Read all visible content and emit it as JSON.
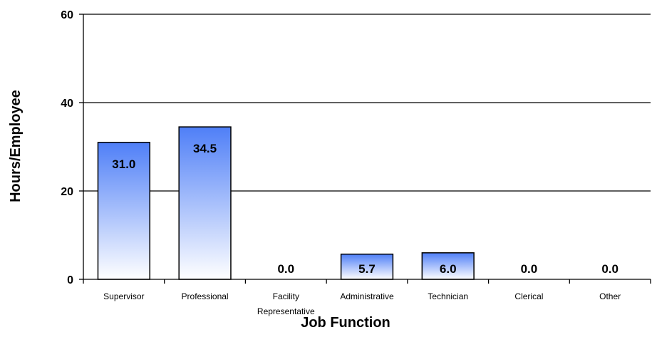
{
  "chart_data": {
    "type": "bar",
    "title": "",
    "xlabel": "Job Function",
    "ylabel": "Hours/Employee",
    "categories": [
      [
        "Supervisor"
      ],
      [
        "Professional"
      ],
      [
        "Facility",
        "Representative"
      ],
      [
        "Administrative"
      ],
      [
        "Technician"
      ],
      [
        "Clerical"
      ],
      [
        "Other"
      ]
    ],
    "values": [
      31.0,
      34.5,
      0.0,
      5.7,
      6.0,
      0.0,
      0.0
    ],
    "data_labels": [
      "31.0",
      "34.5",
      "0.0",
      "5.7",
      "6.0",
      "0.0",
      "0.0"
    ],
    "ylim": [
      0,
      60
    ],
    "yticks": [
      0,
      20,
      40,
      60
    ],
    "grid": true,
    "legend": "none",
    "colors": {
      "bar_top": "#4f7ff7",
      "bar_bottom": "#ffffff",
      "bar_stroke": "#000000",
      "grid": "#000000"
    }
  }
}
